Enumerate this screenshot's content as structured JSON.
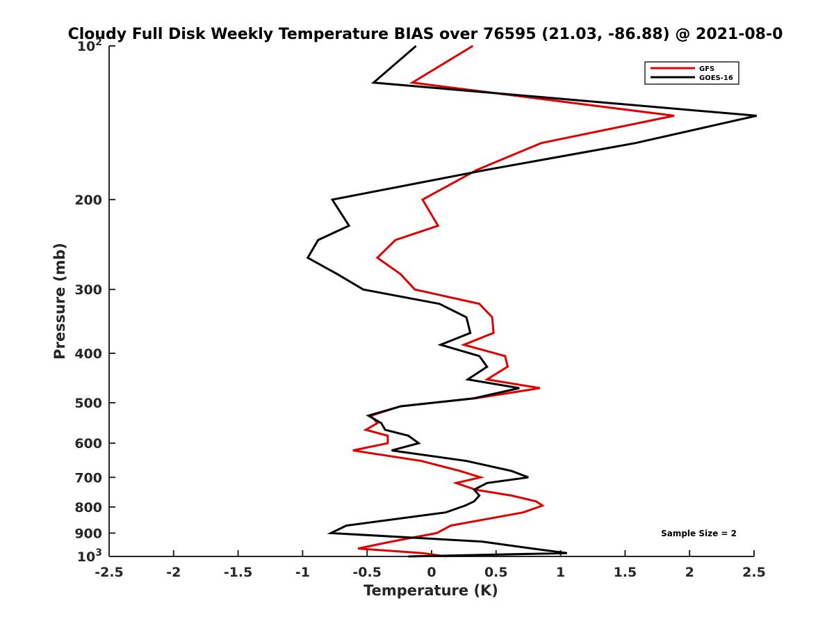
{
  "chart_data": {
    "type": "line",
    "title": "Cloudy Full Disk Weekly Temperature BIAS over 76595 (21.03, -86.88) @ 2021-08-0",
    "xlabel": "Temperature (K)",
    "ylabel": "Pressure (mb)",
    "xlim": [
      -2.5,
      2.5
    ],
    "ylim": [
      100,
      1000
    ],
    "y_scale": "log",
    "y_reversed": true,
    "grid": false,
    "legend_position": "top-right",
    "x_ticks": [
      "-2.5",
      "-2",
      "-1.5",
      "-1",
      "-0.5",
      "0",
      "0.5",
      "1",
      "1.5",
      "2",
      "2.5"
    ],
    "x_tick_values": [
      -2.5,
      -2,
      -1.5,
      -1,
      -0.5,
      0,
      0.5,
      1,
      1.5,
      2,
      2.5
    ],
    "y_ticks": [
      {
        "value": 100,
        "base": "10",
        "exp": "2"
      },
      {
        "value": 200,
        "base": "200",
        "exp": ""
      },
      {
        "value": 300,
        "base": "300",
        "exp": ""
      },
      {
        "value": 400,
        "base": "400",
        "exp": ""
      },
      {
        "value": 500,
        "base": "500",
        "exp": ""
      },
      {
        "value": 600,
        "base": "600",
        "exp": ""
      },
      {
        "value": 700,
        "base": "700",
        "exp": ""
      },
      {
        "value": 800,
        "base": "800",
        "exp": ""
      },
      {
        "value": 900,
        "base": "900",
        "exp": ""
      },
      {
        "value": 1000,
        "base": "10",
        "exp": "3"
      }
    ],
    "annotation": "Sample Size = 2",
    "series": [
      {
        "name": "GFS",
        "color": "#e00000",
        "points": [
          [
            0.32,
            100
          ],
          [
            -0.15,
            118
          ],
          [
            1.88,
            137
          ],
          [
            0.85,
            155
          ],
          [
            0.35,
            175
          ],
          [
            -0.07,
            200
          ],
          [
            0.05,
            225
          ],
          [
            -0.28,
            240
          ],
          [
            -0.42,
            260
          ],
          [
            -0.24,
            280
          ],
          [
            -0.13,
            300
          ],
          [
            0.37,
            320
          ],
          [
            0.47,
            340
          ],
          [
            0.48,
            365
          ],
          [
            0.25,
            385
          ],
          [
            0.57,
            405
          ],
          [
            0.59,
            425
          ],
          [
            0.43,
            450
          ],
          [
            0.84,
            468
          ],
          [
            0.34,
            490
          ],
          [
            -0.24,
            508
          ],
          [
            -0.47,
            530
          ],
          [
            -0.42,
            548
          ],
          [
            -0.51,
            565
          ],
          [
            -0.34,
            580
          ],
          [
            -0.34,
            600
          ],
          [
            -0.61,
            620
          ],
          [
            -0.08,
            650
          ],
          [
            0.22,
            680
          ],
          [
            0.38,
            700
          ],
          [
            0.19,
            718
          ],
          [
            0.34,
            740
          ],
          [
            0.62,
            760
          ],
          [
            0.81,
            780
          ],
          [
            0.86,
            795
          ],
          [
            0.71,
            820
          ],
          [
            0.15,
            870
          ],
          [
            0.04,
            900
          ],
          [
            -0.31,
            935
          ],
          [
            -0.57,
            965
          ],
          [
            -0.07,
            985
          ],
          [
            0.11,
            1000
          ]
        ]
      },
      {
        "name": "GOES-16",
        "color": "#000000",
        "points": [
          [
            -0.12,
            100
          ],
          [
            -0.45,
            118
          ],
          [
            2.52,
            137
          ],
          [
            1.58,
            155
          ],
          [
            0.42,
            175
          ],
          [
            -0.77,
            200
          ],
          [
            -0.64,
            225
          ],
          [
            -0.88,
            240
          ],
          [
            -0.96,
            260
          ],
          [
            -0.73,
            280
          ],
          [
            -0.53,
            300
          ],
          [
            0.06,
            320
          ],
          [
            0.27,
            340
          ],
          [
            0.3,
            365
          ],
          [
            0.07,
            385
          ],
          [
            0.37,
            405
          ],
          [
            0.43,
            425
          ],
          [
            0.28,
            450
          ],
          [
            0.68,
            468
          ],
          [
            0.33,
            490
          ],
          [
            -0.24,
            508
          ],
          [
            -0.49,
            530
          ],
          [
            -0.39,
            548
          ],
          [
            -0.36,
            565
          ],
          [
            -0.18,
            580
          ],
          [
            -0.1,
            600
          ],
          [
            -0.31,
            620
          ],
          [
            0.27,
            650
          ],
          [
            0.62,
            680
          ],
          [
            0.75,
            700
          ],
          [
            0.43,
            718
          ],
          [
            0.33,
            740
          ],
          [
            0.37,
            760
          ],
          [
            0.33,
            780
          ],
          [
            0.26,
            795
          ],
          [
            0.11,
            820
          ],
          [
            -0.66,
            870
          ],
          [
            -0.78,
            900
          ],
          [
            0.39,
            935
          ],
          [
            0.78,
            965
          ],
          [
            1.05,
            985
          ],
          [
            -0.18,
            1000
          ]
        ]
      }
    ]
  }
}
